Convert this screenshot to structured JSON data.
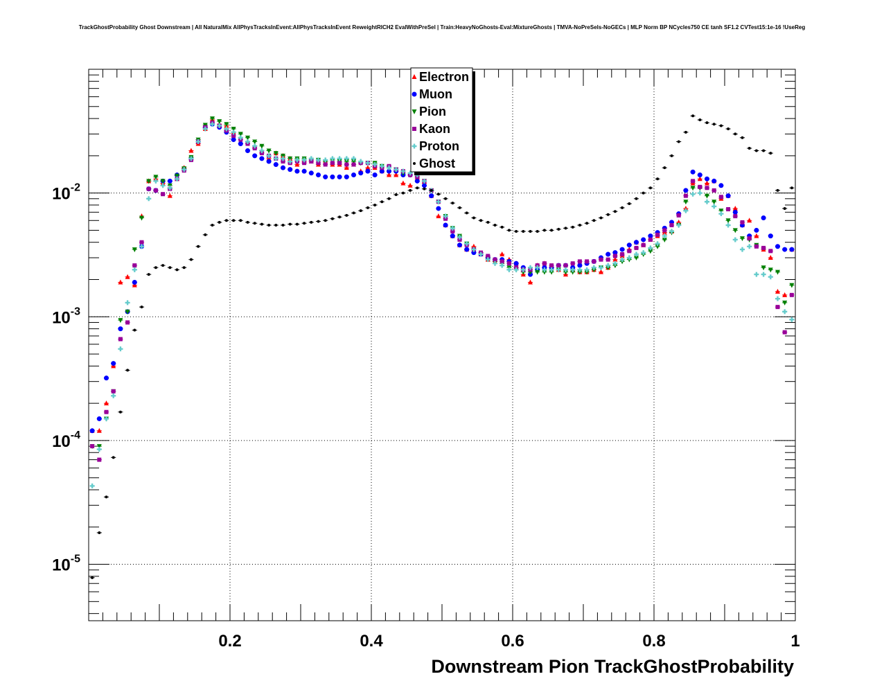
{
  "chart_data": {
    "type": "scatter",
    "title": "TrackGhostProbability Ghost Downstream | All NaturalMix AllPhysTracksInEvent:AllPhysTracksInEvent ReweightRICH2 EvalWithPreSel | Train:HeavyNoGhosts-Eval:MixtureGhosts | TMVA-NoPreSels-NoGECs | MLP Norm BP NCycles750 CE tanh SF1.2 CVTest15:1e-16 !UseReg",
    "xlabel": "Downstream Pion TrackGhostProbability",
    "ylabel": "",
    "xlim": [
      0.0,
      1.0
    ],
    "ylim": [
      3.5e-06,
      0.1
    ],
    "yscale": "log",
    "grid": true,
    "legend_position": "top-center",
    "x_tick_labels": [
      "0.2",
      "0.4",
      "0.6",
      "0.8",
      "1"
    ],
    "y_tick_labels": [
      {
        "base": "10",
        "exp": "-2"
      },
      {
        "base": "10",
        "exp": "-3"
      },
      {
        "base": "10",
        "exp": "-4"
      },
      {
        "base": "10",
        "exp": "-5"
      }
    ],
    "x": [
      0.005,
      0.015,
      0.025,
      0.035,
      0.045,
      0.055,
      0.065,
      0.075,
      0.085,
      0.095,
      0.105,
      0.115,
      0.125,
      0.135,
      0.145,
      0.155,
      0.165,
      0.175,
      0.185,
      0.195,
      0.205,
      0.215,
      0.225,
      0.235,
      0.245,
      0.255,
      0.265,
      0.275,
      0.285,
      0.295,
      0.305,
      0.315,
      0.325,
      0.335,
      0.345,
      0.355,
      0.365,
      0.375,
      0.385,
      0.395,
      0.405,
      0.415,
      0.425,
      0.435,
      0.445,
      0.455,
      0.465,
      0.475,
      0.485,
      0.495,
      0.505,
      0.515,
      0.525,
      0.535,
      0.545,
      0.555,
      0.565,
      0.575,
      0.585,
      0.595,
      0.605,
      0.615,
      0.625,
      0.635,
      0.645,
      0.655,
      0.665,
      0.675,
      0.685,
      0.695,
      0.705,
      0.715,
      0.725,
      0.735,
      0.745,
      0.755,
      0.765,
      0.775,
      0.785,
      0.795,
      0.805,
      0.815,
      0.825,
      0.835,
      0.845,
      0.855,
      0.865,
      0.875,
      0.885,
      0.895,
      0.905,
      0.915,
      0.925,
      0.935,
      0.945,
      0.955,
      0.965,
      0.975,
      0.985,
      0.995
    ],
    "series": [
      {
        "name": "Electron",
        "color": "#ff0000",
        "marker": "triangle-up",
        "values": [
          0.00012,
          0.00012,
          0.0002,
          0.0004,
          0.0019,
          0.0021,
          0.0018,
          0.0065,
          0.0125,
          0.013,
          0.012,
          0.0095,
          0.013,
          0.016,
          0.022,
          0.025,
          0.033,
          0.039,
          0.036,
          0.035,
          0.031,
          0.028,
          0.026,
          0.024,
          0.022,
          0.019,
          0.021,
          0.02,
          0.019,
          0.017,
          0.018,
          0.018,
          0.017,
          0.018,
          0.017,
          0.017,
          0.016,
          0.017,
          0.015,
          0.016,
          0.016,
          0.015,
          0.014,
          0.014,
          0.012,
          0.0115,
          0.013,
          0.012,
          0.0095,
          0.0065,
          0.0055,
          0.0045,
          0.0038,
          0.0035,
          0.0037,
          0.0032,
          0.0029,
          0.0028,
          0.0032,
          0.0029,
          0.0027,
          0.0022,
          0.0019,
          0.0026,
          0.0027,
          0.0025,
          0.0024,
          0.0022,
          0.0024,
          0.0023,
          0.0023,
          0.0024,
          0.0023,
          0.0025,
          0.0029,
          0.0031,
          0.0035,
          0.004,
          0.0038,
          0.0042,
          0.0045,
          0.0048,
          0.0049,
          0.0058,
          0.0075,
          0.012,
          0.013,
          0.012,
          0.0125,
          0.009,
          0.0095,
          0.0075,
          0.0055,
          0.006,
          0.0045,
          0.0035,
          0.003,
          0.0016,
          0.0015,
          0.0035
        ]
      },
      {
        "name": "Muon",
        "color": "#0000ff",
        "marker": "circle",
        "values": [
          0.00012,
          0.00015,
          0.00032,
          0.00042,
          0.0008,
          0.0011,
          0.0019,
          0.0037,
          0.0108,
          0.0105,
          0.0125,
          0.0125,
          0.014,
          0.0155,
          0.019,
          0.026,
          0.034,
          0.036,
          0.034,
          0.031,
          0.027,
          0.025,
          0.022,
          0.02,
          0.019,
          0.018,
          0.017,
          0.016,
          0.0155,
          0.015,
          0.015,
          0.0145,
          0.014,
          0.0135,
          0.0135,
          0.0135,
          0.0135,
          0.014,
          0.0145,
          0.015,
          0.014,
          0.015,
          0.015,
          0.015,
          0.014,
          0.014,
          0.0125,
          0.0115,
          0.0095,
          0.0075,
          0.0055,
          0.0045,
          0.0038,
          0.0035,
          0.0033,
          0.0032,
          0.003,
          0.0029,
          0.0029,
          0.0028,
          0.0027,
          0.0025,
          0.0022,
          0.0024,
          0.0025,
          0.0025,
          0.0026,
          0.0026,
          0.0025,
          0.0026,
          0.0027,
          0.0028,
          0.003,
          0.0032,
          0.0033,
          0.0035,
          0.0038,
          0.004,
          0.0042,
          0.0045,
          0.0048,
          0.0052,
          0.0058,
          0.0068,
          0.0105,
          0.0148,
          0.014,
          0.013,
          0.0125,
          0.0115,
          0.0095,
          0.007,
          0.0055,
          0.0045,
          0.005,
          0.0063,
          0.0045,
          0.0037,
          0.0035,
          0.0035
        ]
      },
      {
        "name": "Pion",
        "color": "#008000",
        "marker": "triangle-down",
        "values": [
          9e-05,
          9e-05,
          0.00015,
          0.00025,
          0.00094,
          0.0011,
          0.0035,
          0.0063,
          0.0125,
          0.0135,
          0.0125,
          0.0115,
          0.0138,
          0.0158,
          0.0195,
          0.027,
          0.0355,
          0.04,
          0.038,
          0.036,
          0.033,
          0.03,
          0.028,
          0.026,
          0.024,
          0.022,
          0.021,
          0.02,
          0.019,
          0.019,
          0.019,
          0.0185,
          0.0185,
          0.018,
          0.0185,
          0.018,
          0.018,
          0.018,
          0.0175,
          0.0175,
          0.0175,
          0.0165,
          0.016,
          0.0155,
          0.0145,
          0.014,
          0.0135,
          0.0125,
          0.0105,
          0.0085,
          0.0065,
          0.0052,
          0.0045,
          0.0039,
          0.0035,
          0.0032,
          0.003,
          0.0028,
          0.0027,
          0.0025,
          0.0024,
          0.0023,
          0.0023,
          0.0023,
          0.0023,
          0.0023,
          0.0024,
          0.0023,
          0.0023,
          0.0023,
          0.0023,
          0.0024,
          0.0025,
          0.0025,
          0.0026,
          0.0028,
          0.0029,
          0.003,
          0.0032,
          0.0034,
          0.0037,
          0.0042,
          0.0048,
          0.0055,
          0.0085,
          0.011,
          0.011,
          0.0095,
          0.0085,
          0.0072,
          0.006,
          0.005,
          0.0043,
          0.0042,
          0.0038,
          0.0025,
          0.0024,
          0.0023,
          0.0013,
          0.0018
        ]
      },
      {
        "name": "Kaon",
        "color": "#990099",
        "marker": "square",
        "values": [
          9e-05,
          7e-05,
          0.00017,
          0.00025,
          0.00066,
          0.0009,
          0.0026,
          0.004,
          0.0108,
          0.0105,
          0.0098,
          0.0108,
          0.013,
          0.0152,
          0.0185,
          0.026,
          0.034,
          0.037,
          0.035,
          0.032,
          0.029,
          0.027,
          0.025,
          0.023,
          0.021,
          0.02,
          0.019,
          0.018,
          0.0175,
          0.018,
          0.0175,
          0.018,
          0.0175,
          0.017,
          0.0175,
          0.0175,
          0.017,
          0.017,
          0.0175,
          0.0175,
          0.0165,
          0.016,
          0.0165,
          0.0155,
          0.015,
          0.014,
          0.0135,
          0.0125,
          0.0105,
          0.0085,
          0.0062,
          0.0049,
          0.0042,
          0.0038,
          0.0035,
          0.0033,
          0.0031,
          0.0029,
          0.0028,
          0.0027,
          0.0025,
          0.0024,
          0.0024,
          0.0026,
          0.0027,
          0.0026,
          0.0026,
          0.0026,
          0.0027,
          0.0028,
          0.0028,
          0.0028,
          0.0029,
          0.0029,
          0.0031,
          0.0032,
          0.0034,
          0.0036,
          0.0038,
          0.0042,
          0.0046,
          0.005,
          0.0055,
          0.0066,
          0.0095,
          0.0125,
          0.0112,
          0.011,
          0.0105,
          0.0093,
          0.0074,
          0.0065,
          0.0058,
          0.0043,
          0.0037,
          0.0036,
          0.0034,
          0.0012,
          0.00075,
          0.0015
        ]
      },
      {
        "name": "Proton",
        "color": "#66cccc",
        "marker": "cross",
        "values": [
          4.3e-05,
          8.5e-05,
          0.00015,
          0.00023,
          0.00055,
          0.0013,
          0.0024,
          0.0037,
          0.009,
          0.0125,
          0.0115,
          0.011,
          0.013,
          0.0155,
          0.019,
          0.026,
          0.033,
          0.036,
          0.035,
          0.033,
          0.031,
          0.028,
          0.026,
          0.024,
          0.022,
          0.02,
          0.019,
          0.019,
          0.018,
          0.0185,
          0.0185,
          0.019,
          0.0185,
          0.0185,
          0.019,
          0.019,
          0.019,
          0.019,
          0.018,
          0.0175,
          0.017,
          0.0165,
          0.016,
          0.0155,
          0.015,
          0.0145,
          0.014,
          0.0125,
          0.0105,
          0.0085,
          0.0065,
          0.0052,
          0.0044,
          0.0039,
          0.0035,
          0.0032,
          0.0029,
          0.0027,
          0.0026,
          0.0024,
          0.0024,
          0.0024,
          0.0025,
          0.0025,
          0.0024,
          0.0024,
          0.0024,
          0.0024,
          0.0024,
          0.0024,
          0.0024,
          0.0025,
          0.0025,
          0.0026,
          0.0027,
          0.0029,
          0.003,
          0.0032,
          0.0033,
          0.0036,
          0.0039,
          0.0045,
          0.0049,
          0.0055,
          0.0072,
          0.0098,
          0.01,
          0.0085,
          0.0078,
          0.0068,
          0.0055,
          0.0042,
          0.0035,
          0.0037,
          0.0022,
          0.0022,
          0.0021,
          0.0014,
          0.0011,
          0.00095
        ]
      },
      {
        "name": "Ghost",
        "color": "#000000",
        "marker": "circle-small",
        "values": [
          7.8e-06,
          1.8e-05,
          3.5e-05,
          7.3e-05,
          0.00017,
          0.00037,
          0.00078,
          0.0012,
          0.0022,
          0.0025,
          0.0026,
          0.0025,
          0.0024,
          0.0025,
          0.0029,
          0.0037,
          0.0046,
          0.0055,
          0.0058,
          0.006,
          0.006,
          0.006,
          0.0058,
          0.0057,
          0.0056,
          0.0055,
          0.0055,
          0.0055,
          0.0056,
          0.0056,
          0.0057,
          0.0058,
          0.0059,
          0.006,
          0.0062,
          0.0064,
          0.0066,
          0.0069,
          0.0072,
          0.0076,
          0.008,
          0.0085,
          0.009,
          0.0097,
          0.01,
          0.0105,
          0.011,
          0.0108,
          0.0105,
          0.0098,
          0.009,
          0.0083,
          0.0076,
          0.0069,
          0.0063,
          0.006,
          0.0058,
          0.0055,
          0.0053,
          0.005,
          0.0049,
          0.0049,
          0.0049,
          0.0049,
          0.005,
          0.005,
          0.0051,
          0.0052,
          0.0053,
          0.0055,
          0.0057,
          0.006,
          0.0063,
          0.0067,
          0.0071,
          0.0076,
          0.0082,
          0.009,
          0.01,
          0.011,
          0.013,
          0.016,
          0.02,
          0.026,
          0.031,
          0.042,
          0.039,
          0.037,
          0.036,
          0.035,
          0.033,
          0.03,
          0.028,
          0.023,
          0.022,
          0.022,
          0.021,
          0.0105,
          0.0075,
          0.011
        ]
      }
    ]
  }
}
